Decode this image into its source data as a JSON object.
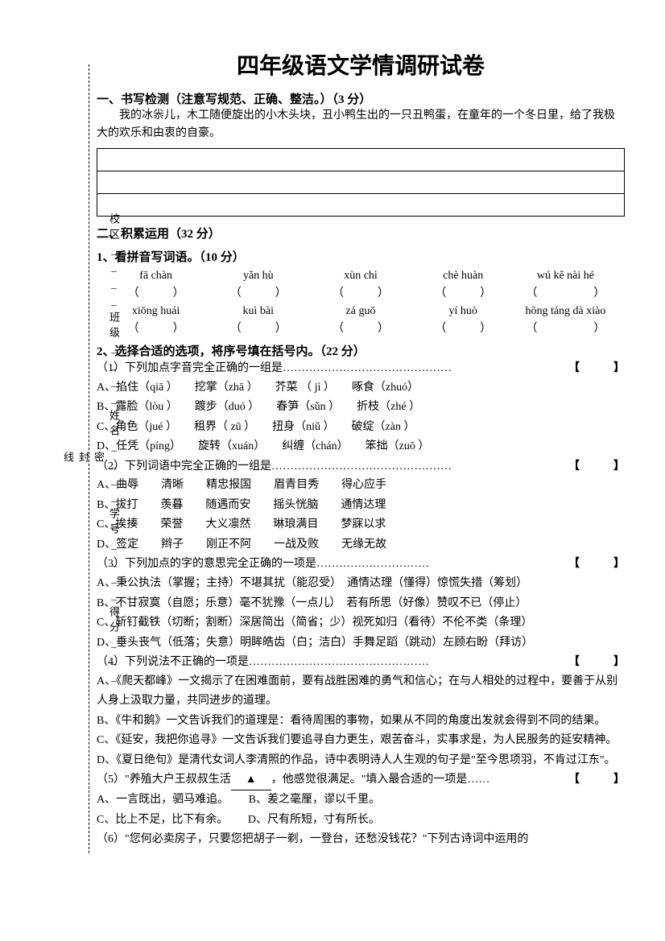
{
  "title": "四年级语文学情调研试卷",
  "binding_labels": "校区____班级____姓名____学号____得分____",
  "section1": {
    "heading": "一、书写检测（注意写规范、正确、整洁。）（3 分）",
    "prompt": "我的冰尜儿，木工随便旋出的小木头块，丑小鸭生出的一只丑鸭蛋，在童年的一个冬日里，给了我极大的欢乐和由衷的自豪。"
  },
  "section2": {
    "heading": "二、积累运用（32 分）",
    "q1": {
      "heading": "1、看拼音写词语。（10 分）",
      "row1": [
        "fā  chàn",
        "yǎn  hù",
        "xùn  chì",
        "chè  huàn",
        "wú kě nài hé"
      ],
      "row2": [
        "xiōng huái",
        "kuì  bài",
        "zá  guō",
        "yí  huò",
        "hōng táng dà xiào"
      ]
    },
    "q2": {
      "heading": "2、选择合适的选项，将序号填在括号内。（22 分）",
      "sub1": {
        "stem": "（1）下列加点字音完全正确的一组是",
        "dots": "………………………………………",
        "optA": "A、掐住（qiā ）　　挖掌（zhā ）　　芥菜 （ jì ）　　啄食（zhuó）",
        "optB": "B、露脸（lòu ）　　踱步（duó ）　　春笋（sǔn ）　　折枝（zhé ）",
        "optC": "C、角色（jué ）　　租界（ zū ）　　扭身（niǔ ）　　破绽（zàn ）",
        "optD": "D、任凭（píng）　　旋转（xuán）　　纠缠（chán）　　笨拙（zuō ）"
      },
      "sub2": {
        "stem": "（2）下列词语中完全正确的一组是",
        "dots": "…………………………………………",
        "optA": "A、曲辱　　清晰　　精忠报国　　眉青目秀　　得心应手",
        "optB": "B、拔打　　羡暮　　随遇而安　　摇头恍脑　　通情达理",
        "optC": "C、挨揍　　荣誉　　大义凛然　　琳琅满目　　梦寐以求",
        "optD": "D、签定　　辫子　　刚正不阿　　一战及败　　无缘无故"
      },
      "sub3": {
        "stem": "（3）下列加点的字的意思完全正确的一项是",
        "dots": "…………………………",
        "optA": "A、秉公执法（掌握；主持）不堪其扰（能忍受）　通情达理（懂得）惊慌失措（筹划）",
        "optB": "B、不甘寂寞（自愿；乐意）毫不犹豫（一点儿）　若有所思（好像）赞叹不已（停止）",
        "optC": "C、斩钉截铁（切断；割断）深居简出（简省；少）视死如归（看待）不伦不类（条理）",
        "optD": "D、垂头丧气（低落；失意）明眸皓齿（白；洁白）手舞足蹈（跳动）左顾右盼（拜访）"
      },
      "sub4": {
        "stem": "（4）下列说法不正确的一项是",
        "dots": "…………………………………………",
        "optA": "A、《爬天都峰》一文揭示了在困难面前，要有战胜困难的勇气和信心；在与人相处的过程中，要善于从别人身上汲取力量，共同进步的道理。",
        "optB": "B、《牛和鹅》一文告诉我们的道理是：看待周围的事物，如果从不同的角度出发就会得到不同的结果。",
        "optC": "C、《延安，我把你追寻》一文告诉我们要追寻自力更生，艰苦奋斗，实事求是，为人民服务的延安精神。",
        "optD": "D、《夏日绝句》是清代女词人李清照的作品，诗中表明诗人人生观的句子是\"至今思项羽，不肯过江东\"。"
      },
      "sub5": {
        "stem_pre": "（5）\"养殖大户王叔叔生活",
        "blank": "▲",
        "stem_post": "，他感觉很满足。\"填入最合适的一项是……",
        "optA": "A、一言既出，驷马难追。",
        "optB": "B、差之毫厘，谬以千里。",
        "optC": "C、比上不足，比下有余。",
        "optD": "D、尺有所短，寸有所长。"
      },
      "sub6": {
        "stem": "（6）\"您何必卖房子，只要您把胡子一剃，一登台，还愁没钱花？\"下列古诗词中运用的"
      }
    }
  },
  "bracket_text": "【　　　】"
}
